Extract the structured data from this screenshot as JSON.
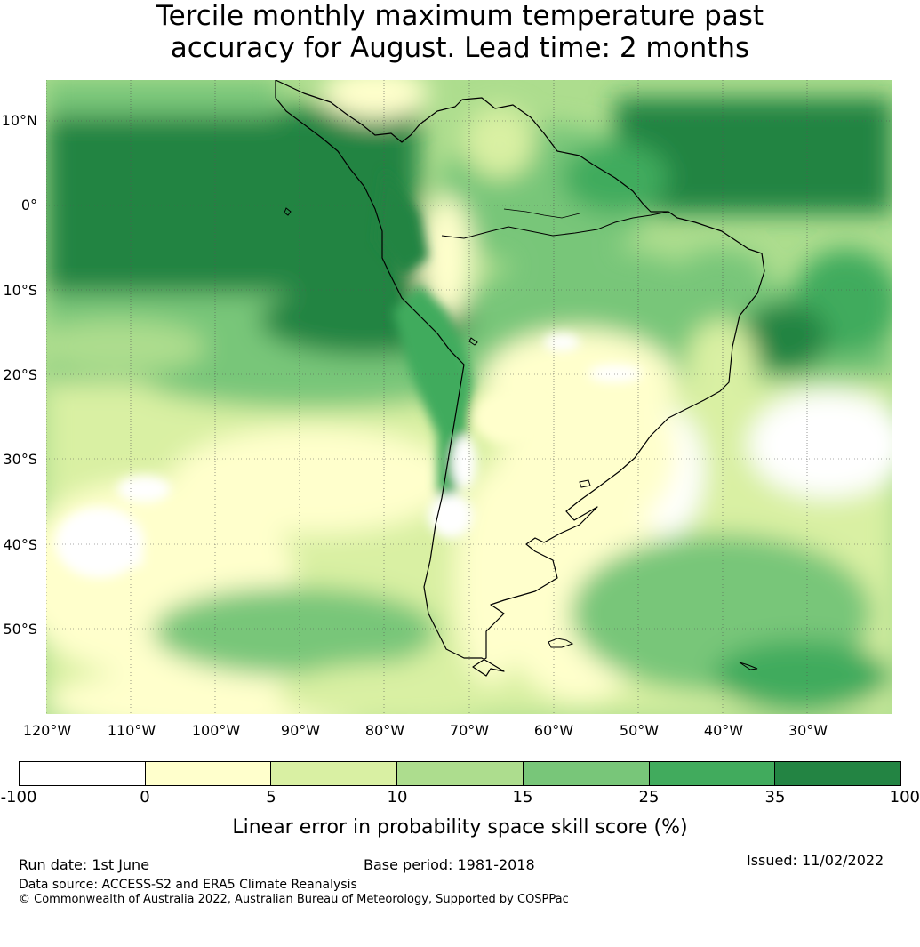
{
  "title": {
    "line1": "Tercile monthly maximum temperature past",
    "line2": "accuracy for August. Lead time: 2 months"
  },
  "map": {
    "lat_labels": [
      "10°N",
      "0°",
      "10°S",
      "20°S",
      "30°S",
      "40°S",
      "50°S"
    ],
    "lon_labels": [
      "120°W",
      "110°W",
      "100°W",
      "90°W",
      "80°W",
      "70°W",
      "60°W",
      "50°W",
      "40°W",
      "30°W"
    ]
  },
  "colorbar": {
    "colors": [
      "#ffffff",
      "#ffffcc",
      "#d9f0a3",
      "#addd8e",
      "#78c679",
      "#41ab5d",
      "#238443"
    ],
    "ticks": [
      "-100",
      "0",
      "5",
      "10",
      "15",
      "25",
      "35",
      "100"
    ],
    "title": "Linear error in probability space skill score (%)"
  },
  "footer": {
    "run_date": "Run date: 1st June",
    "base_period": "Base period: 1981-2018",
    "issued": "Issued: 11/02/2022",
    "data_source": "Data source: ACCESS-S2 and ERA5 Climate Reanalysis",
    "copyright": "© Commonwealth of Australia 2022, Australian Bureau of Meteorology, Supported by COSPPac"
  }
}
